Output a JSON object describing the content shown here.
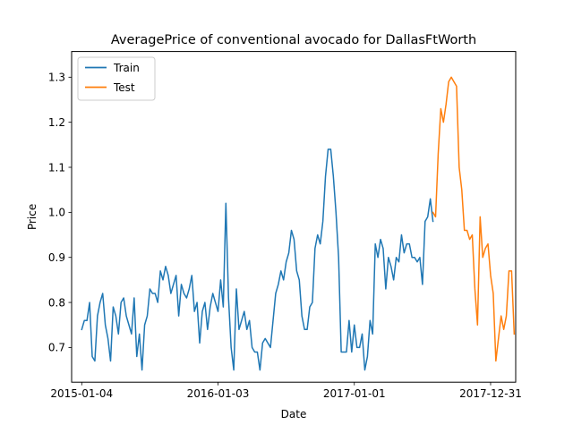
{
  "chart_data": {
    "type": "line",
    "title": "AveragePrice of conventional avocado for DallasFtWorth",
    "xlabel": "Date",
    "ylabel": "Price",
    "xlim": [
      "2014-12-08",
      "2018-03-08"
    ],
    "ylim": [
      0.623,
      1.357
    ],
    "x_tick_labels": [
      "2015-01-04",
      "2016-01-03",
      "2017-01-01",
      "2017-12-31"
    ],
    "y_tick_labels": [
      "0.7",
      "0.8",
      "0.9",
      "1.0",
      "1.1",
      "1.2",
      "1.3"
    ],
    "grid": false,
    "legend_position": "upper-left",
    "series": [
      {
        "name": "Train",
        "color": "#1f77b4",
        "start_date": "2015-01-04",
        "step_days": 7,
        "values": [
          0.74,
          0.76,
          0.76,
          0.8,
          0.68,
          0.67,
          0.77,
          0.8,
          0.82,
          0.75,
          0.72,
          0.67,
          0.79,
          0.77,
          0.73,
          0.8,
          0.81,
          0.77,
          0.75,
          0.73,
          0.81,
          0.68,
          0.73,
          0.65,
          0.75,
          0.77,
          0.83,
          0.82,
          0.82,
          0.8,
          0.87,
          0.85,
          0.88,
          0.86,
          0.82,
          0.84,
          0.86,
          0.77,
          0.84,
          0.82,
          0.81,
          0.83,
          0.86,
          0.78,
          0.8,
          0.71,
          0.78,
          0.8,
          0.74,
          0.79,
          0.82,
          0.8,
          0.78,
          0.85,
          0.79,
          1.02,
          0.81,
          0.7,
          0.65,
          0.83,
          0.74,
          0.76,
          0.78,
          0.74,
          0.76,
          0.7,
          0.69,
          0.69,
          0.65,
          0.71,
          0.72,
          0.71,
          0.7,
          0.76,
          0.82,
          0.84,
          0.87,
          0.85,
          0.89,
          0.91,
          0.96,
          0.94,
          0.87,
          0.85,
          0.77,
          0.74,
          0.74,
          0.79,
          0.8,
          0.92,
          0.95,
          0.93,
          0.98,
          1.08,
          1.14,
          1.14,
          1.08,
          1.0,
          0.9,
          0.69,
          0.69,
          0.69,
          0.76,
          0.69,
          0.75,
          0.7,
          0.7,
          0.73,
          0.65,
          0.68,
          0.76,
          0.73,
          0.93,
          0.9,
          0.94,
          0.92,
          0.83,
          0.9,
          0.88,
          0.85,
          0.9,
          0.89,
          0.95,
          0.91,
          0.93,
          0.93,
          0.9,
          0.9,
          0.89,
          0.9,
          0.84,
          0.98,
          0.99,
          1.03,
          0.98
        ]
      },
      {
        "name": "Test",
        "color": "#ff7f0e",
        "start_date": "2017-07-30",
        "step_days": 7,
        "values": [
          1.0,
          0.99,
          1.13,
          1.23,
          1.2,
          1.24,
          1.29,
          1.3,
          1.29,
          1.28,
          1.1,
          1.05,
          0.96,
          0.96,
          0.94,
          0.95,
          0.83,
          0.75,
          0.99,
          0.9,
          0.92,
          0.93,
          0.86,
          0.82,
          0.67,
          0.72,
          0.77,
          0.74,
          0.77,
          0.87,
          0.87,
          0.73
        ]
      }
    ]
  }
}
